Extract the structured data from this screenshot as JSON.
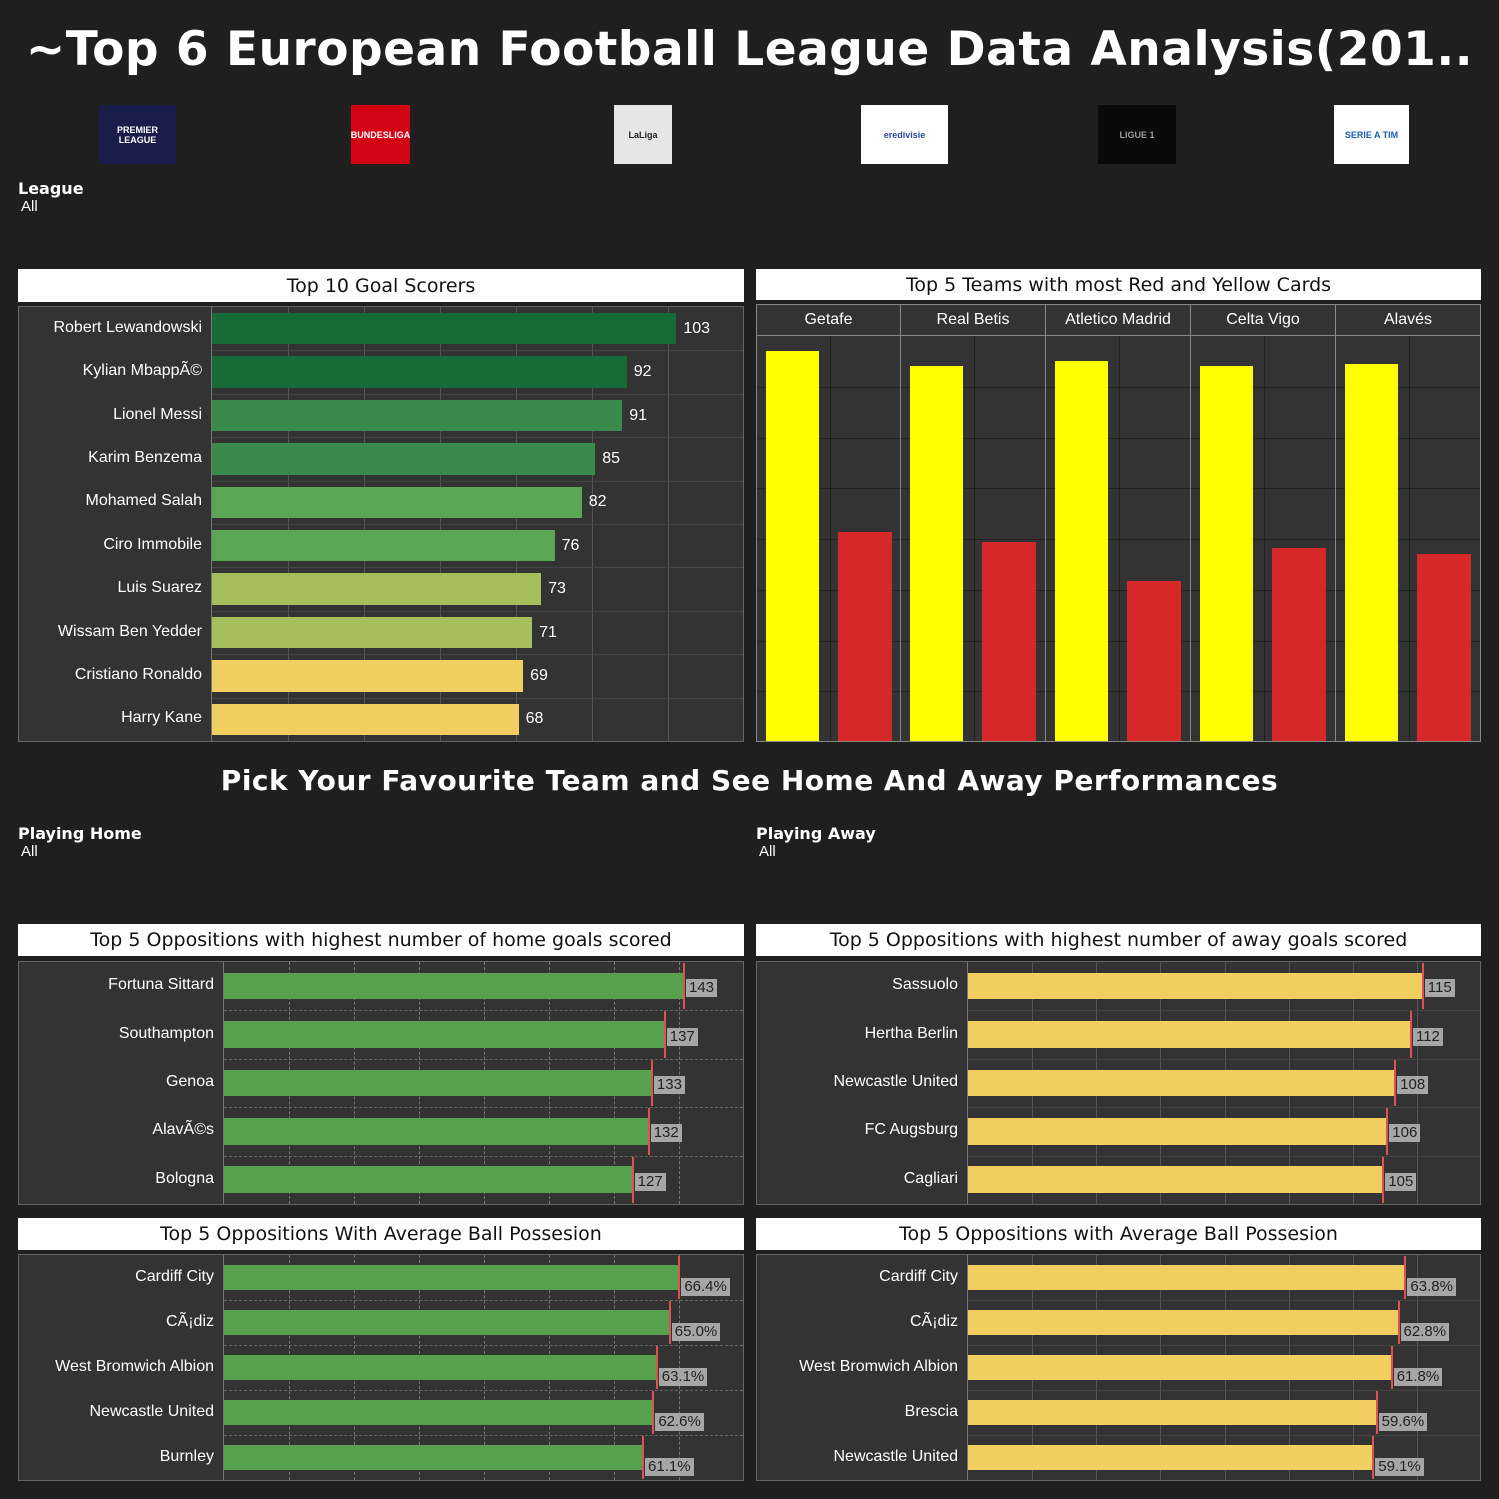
{
  "title": "~Top 6 European Football League Data Analysis(201..",
  "logos": [
    {
      "name": "premier-league-logo",
      "text": "PREMIER LEAGUE",
      "bg": "#1a1d4a",
      "fg": "#ffffff"
    },
    {
      "name": "bundesliga-logo",
      "text": "BUNDESLIGA",
      "bg": "#d20515",
      "fg": "#ffffff"
    },
    {
      "name": "laliga-logo",
      "text": "LaLiga",
      "bg": "#e6e6e6",
      "fg": "#222222"
    },
    {
      "name": "eredivisie-logo",
      "text": "eredivisie",
      "bg": "#ffffff",
      "fg": "#2a4aa0"
    },
    {
      "name": "ligue1-logo",
      "text": "LIGUE 1",
      "bg": "#0a0a0a",
      "fg": "#9a9a9a"
    },
    {
      "name": "serie-a-logo",
      "text": "SERIE A TIM",
      "bg": "#ffffff",
      "fg": "#1a5fb4"
    }
  ],
  "filters": {
    "league": {
      "label": "League",
      "value": "All"
    },
    "playing_home": {
      "label": "Playing Home",
      "value": "All"
    },
    "playing_away": {
      "label": "Playing Away",
      "value": "All"
    }
  },
  "section_title": "Pick Your Favourite Team and See Home And Away Performances",
  "colors": {
    "dark_green": "#176b36",
    "mid_green": "#3a8a4c",
    "light_green": "#5aa654",
    "olive": "#a6bf5c",
    "yellow_bar": "#f1ce60",
    "card_yellow": "#ffff00",
    "card_red": "#d62828",
    "ref_line": "#e05252",
    "home_green": "#56a04e"
  },
  "chart_data": [
    {
      "type": "bar",
      "orientation": "horizontal",
      "title": "Top 10 Goal Scorers",
      "categories": [
        "Robert Lewandowski",
        "Kylian MbappÃ©",
        "Lionel Messi",
        "Karim Benzema",
        "Mohamed Salah",
        "Ciro Immobile",
        "Luis Suarez",
        "Wissam Ben Yedder",
        "Cristiano Ronaldo",
        "Harry Kane"
      ],
      "values": [
        103,
        92,
        91,
        85,
        82,
        76,
        73,
        71,
        69,
        68
      ],
      "value_labels": [
        "103",
        "92",
        "91",
        "85",
        "82",
        "76",
        "73",
        "71",
        "69",
        "68"
      ],
      "bar_colors": [
        "#176b36",
        "#176b36",
        "#3a8a4c",
        "#3a8a4c",
        "#5aa654",
        "#5aa654",
        "#a6bf5c",
        "#a6bf5c",
        "#f1ce60",
        "#f1ce60"
      ],
      "xlim": [
        0,
        118
      ]
    },
    {
      "type": "bar",
      "title": "Top 5 Teams with most Red and Yellow Cards",
      "categories": [
        "Getafe",
        "Real Betis",
        "Atletico Madrid",
        "Celta Vigo",
        "Alavés"
      ],
      "series": [
        {
          "values": [
            1000,
            960,
            973,
            960,
            965
          ],
          "color": "#ffff00"
        },
        {
          "values": [
            535,
            510,
            410,
            495,
            480
          ],
          "color": "#d62828"
        }
      ],
      "ylim": [
        0,
        1040
      ]
    },
    {
      "type": "bar",
      "orientation": "horizontal",
      "title": "Top 5 Oppositions with highest number of home goals scored",
      "categories": [
        "Fortuna Sittard",
        "Southampton",
        "Genoa",
        "AlavÃ©s",
        "Bologna"
      ],
      "values": [
        143,
        137,
        133,
        132,
        127
      ],
      "value_labels": [
        "143",
        "137",
        "133",
        "132",
        "127"
      ],
      "color": "#56a04e",
      "xlim": [
        0,
        162
      ]
    },
    {
      "type": "bar",
      "orientation": "horizontal",
      "title": "Top 5 Oppositions with highest number of away goals scored",
      "categories": [
        "Sassuolo",
        "Hertha Berlin",
        "Newcastle United",
        "FC Augsburg",
        "Cagliari"
      ],
      "values": [
        115,
        112,
        108,
        106,
        105
      ],
      "value_labels": [
        "115",
        "112",
        "108",
        "106",
        "105"
      ],
      "color": "#f1ce60",
      "xlim": [
        0,
        130
      ]
    },
    {
      "type": "bar",
      "orientation": "horizontal",
      "title": "Top 5 Oppositions With Average Ball Possesion",
      "categories": [
        "Cardiff City",
        "CÃ¡diz",
        "West Bromwich Albion",
        "Newcastle United",
        "Burnley"
      ],
      "values": [
        66.4,
        65.0,
        63.1,
        62.6,
        61.1
      ],
      "value_labels": [
        "66.4%",
        "65.0%",
        "63.1%",
        "62.6%",
        "61.1%"
      ],
      "color": "#56a04e",
      "xlim": [
        0,
        76
      ]
    },
    {
      "type": "bar",
      "orientation": "horizontal",
      "title": "Top 5 Oppositions with Average Ball Possesion",
      "categories": [
        "Cardiff City",
        "CÃ¡diz",
        "West Bromwich Albion",
        "Brescia",
        "Newcastle United"
      ],
      "values": [
        63.8,
        62.8,
        61.8,
        59.6,
        59.1
      ],
      "value_labels": [
        "63.8%",
        "62.8%",
        "61.8%",
        "59.6%",
        "59.1%"
      ],
      "color": "#f1ce60",
      "xlim": [
        0,
        75
      ]
    }
  ]
}
